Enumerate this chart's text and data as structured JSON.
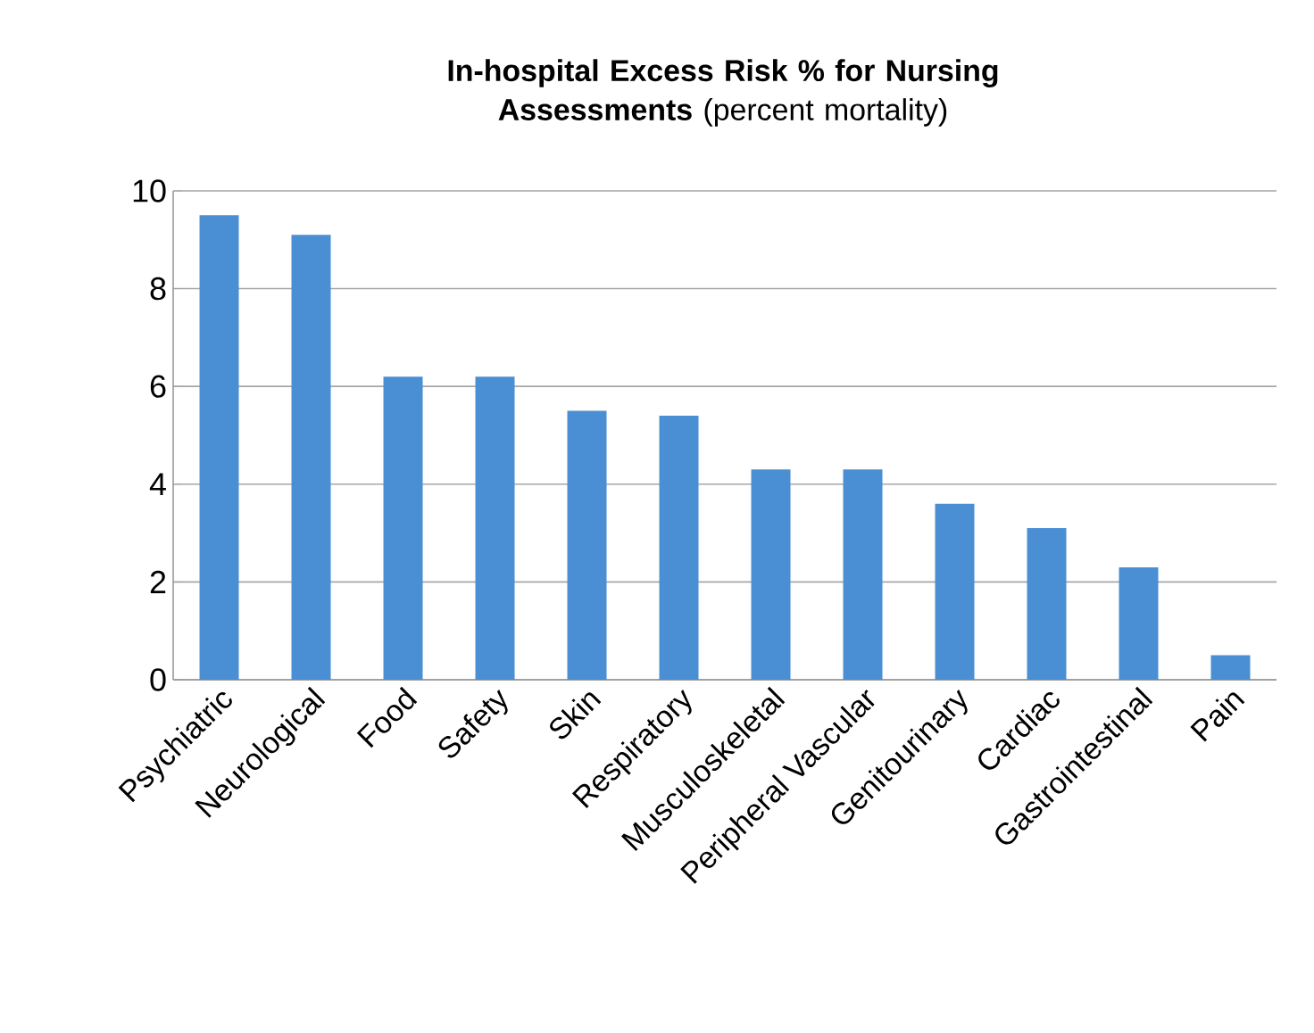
{
  "chart_data": {
    "type": "bar",
    "title": "**In-hospital Excess Risk %  for Nursing Assessments**  (percent mortality)",
    "categories": [
      "Psychiatric",
      "Neurological",
      "Food",
      "Safety",
      "Skin",
      "Respiratory",
      "Musculoskeletal",
      "Peripheral Vascular",
      "Genitourinary",
      "Cardiac",
      "Gastrointestinal",
      "Pain"
    ],
    "values": [
      9.5,
      9.1,
      6.2,
      6.2,
      5.5,
      5.4,
      4.3,
      4.3,
      3.6,
      3.1,
      2.3,
      0.5
    ],
    "color": "#4a8fd4",
    "ylim": [
      0,
      10
    ],
    "yticks": [
      0,
      2,
      4,
      6,
      8,
      10
    ],
    "grid": "y"
  }
}
